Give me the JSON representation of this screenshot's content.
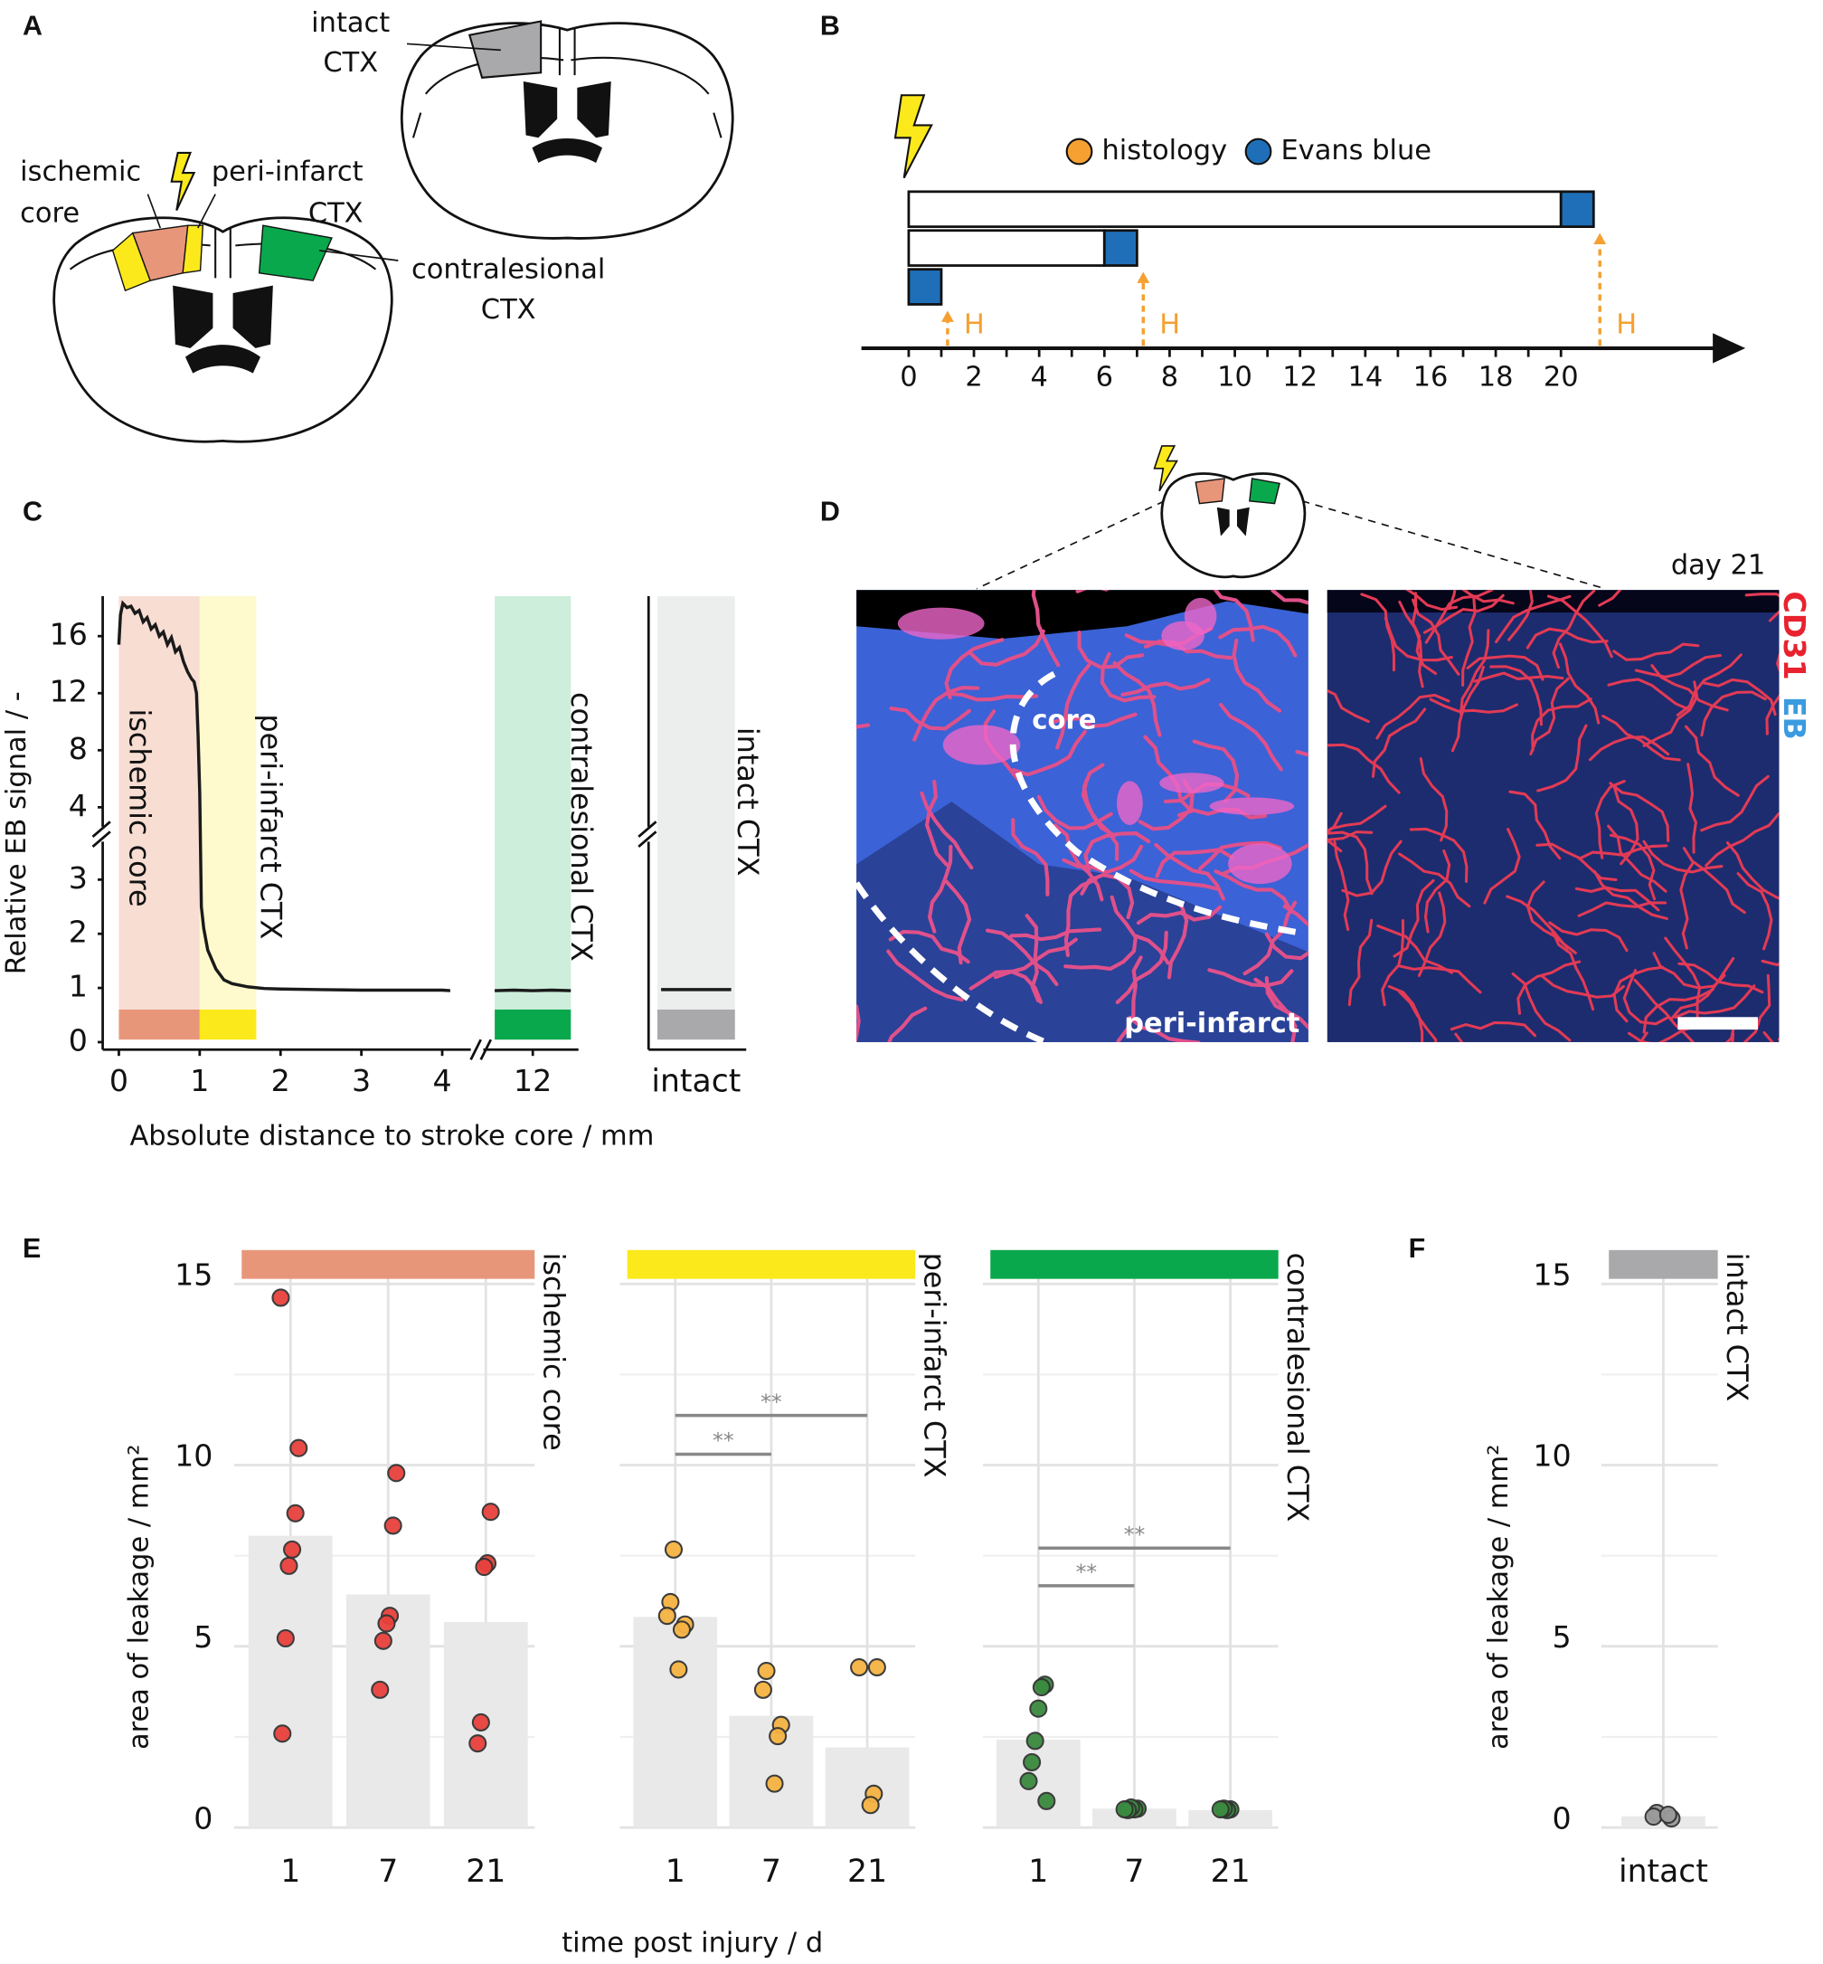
{
  "figure": {
    "panel_labels": [
      "A",
      "B",
      "C",
      "D",
      "E",
      "F"
    ]
  },
  "panel_a": {
    "intact": [
      "intact",
      "CTX"
    ],
    "ischemic": [
      "ischemic",
      "core"
    ],
    "peri": [
      "peri-infarct",
      "CTX"
    ],
    "contra": [
      "contralesional",
      "CTX"
    ]
  },
  "panel_b": {
    "type": "timeline",
    "legend": [
      {
        "name": "histology",
        "color": "#f5a031"
      },
      {
        "name": "Evans blue",
        "color": "#1f6fb8"
      }
    ],
    "groups": [
      {
        "start": 0,
        "eb_start": 20,
        "end": 21,
        "histology": 21
      },
      {
        "start": 0,
        "eb_start": 6,
        "end": 7,
        "histology": 7
      },
      {
        "start": 0,
        "eb_start": 0,
        "end": 1,
        "histology": 1
      }
    ],
    "histology_label": "H",
    "xlim": [
      -1.45,
      25.5
    ],
    "xticks": [
      0,
      2,
      4,
      6,
      8,
      10,
      12,
      14,
      16,
      18,
      20
    ]
  },
  "panel_d": {
    "day": "day 21",
    "stain_red": "CD31",
    "stain_blue": "EB",
    "core": "core",
    "peri": "peri-infarct"
  },
  "chart_data": [
    {
      "type": "line",
      "ylabel": "Relative EB signal  / -",
      "xlabel": "Absolute distance to stroke core / mm",
      "y_segments": [
        {
          "ylim": [
            0,
            3.7
          ],
          "yticks": [
            0,
            1,
            2,
            3
          ]
        },
        {
          "ylim": [
            2.2,
            18.8
          ],
          "yticks": [
            4,
            8,
            12,
            16
          ]
        }
      ],
      "x_segments": [
        {
          "xlim": [
            -0.2,
            4.4
          ],
          "xticks": [
            0,
            1,
            2,
            3,
            4
          ]
        },
        {
          "xlim": [
            11.35,
            12.6
          ],
          "xticks": [
            12
          ]
        }
      ],
      "categories": [
        "intact"
      ],
      "regions": [
        {
          "name": "ischemic core",
          "from": 0,
          "to": 1,
          "color": "#f8ddd3",
          "bar_color": "#e8967a"
        },
        {
          "name": "peri-infarct CTX",
          "from": 1,
          "to": 1.7,
          "color": "#fefacd",
          "bar_color": "#fbe91c"
        },
        {
          "name": "contralesional CTX",
          "from": 11.5,
          "to": 12.5,
          "color": "#cdeedb",
          "bar_color": "#0aa84c"
        },
        {
          "name": "intact CTX",
          "color": "#eceeed",
          "bar_color": "#a9a9ab"
        }
      ],
      "series": [
        {
          "color": "#1a1a1a",
          "x": [
            0,
            0.02,
            0.05,
            0.1,
            0.15,
            0.2,
            0.25,
            0.3,
            0.35,
            0.4,
            0.45,
            0.5,
            0.55,
            0.6,
            0.65,
            0.7,
            0.75,
            0.8,
            0.85,
            0.9,
            0.93,
            0.96,
            0.98,
            1.0,
            1.02,
            1.05,
            1.1,
            1.2,
            1.3,
            1.4,
            1.6,
            1.8,
            2,
            2.5,
            3,
            3.5,
            4,
            4.1
          ],
          "values": [
            15.4,
            17.5,
            18.3,
            18.0,
            18.1,
            17.6,
            17.8,
            17.0,
            17.3,
            16.5,
            16.8,
            16.0,
            16.3,
            15.4,
            15.9,
            14.9,
            15.2,
            14.2,
            13.5,
            13.0,
            12.8,
            12.0,
            9,
            5,
            2.5,
            2.1,
            1.7,
            1.35,
            1.15,
            1.08,
            1.02,
            0.99,
            0.98,
            0.97,
            0.96,
            0.96,
            0.96,
            0.95
          ]
        },
        {
          "color": "#1a1a1a",
          "x": [
            11.5,
            11.75,
            12,
            12.25,
            12.5
          ],
          "values": [
            0.95,
            0.96,
            0.95,
            0.96,
            0.95
          ]
        },
        {
          "color": "#1a1a1a",
          "values": [
            0.97
          ]
        }
      ]
    },
    {
      "type": "bar",
      "title": "ischemic core",
      "strip_color": "#e8967a",
      "point_color": "#e8413c",
      "ylabel": "area of leakage / mm²",
      "xlabel": "time post injury / d",
      "categories": [
        "1",
        "7",
        "21"
      ],
      "values": [
        8.05,
        6.43,
        5.67
      ],
      "points": [
        [
          14.62,
          10.47,
          8.67,
          7.67,
          7.22,
          5.22,
          2.59
        ],
        [
          9.78,
          8.33,
          5.84,
          5.63,
          5.15,
          3.8
        ],
        [
          8.71,
          7.29,
          7.19,
          2.9,
          2.32
        ]
      ],
      "ylim": [
        0,
        15.8
      ],
      "yticks": [
        0,
        5,
        10,
        15
      ],
      "minor_yticks": [
        2.5,
        7.5,
        12.5
      ],
      "significance": []
    },
    {
      "type": "bar",
      "title": "peri-infarct CTX",
      "strip_color": "#fbe91c",
      "point_color": "#f5b342",
      "categories": [
        "1",
        "7",
        "21"
      ],
      "values": [
        5.81,
        3.08,
        2.21
      ],
      "points": [
        [
          7.67,
          6.22,
          5.84,
          5.6,
          5.46,
          4.36
        ],
        [
          4.32,
          3.8,
          2.83,
          2.52,
          1.21
        ],
        [
          4.42,
          4.42,
          0.93,
          0.62
        ]
      ],
      "ylim": [
        0,
        15.8
      ],
      "yticks": [
        0,
        5,
        10,
        15
      ],
      "minor_yticks": [
        2.5,
        7.5,
        12.5
      ],
      "significance": [
        {
          "between": [
            "1",
            "7"
          ],
          "y": 10.3,
          "label": "**"
        },
        {
          "between": [
            "1",
            "21"
          ],
          "y": 11.37,
          "label": "**"
        }
      ]
    },
    {
      "type": "bar",
      "title": "contralesional CTX",
      "strip_color": "#0aa84c",
      "point_color": "#3a8a3f",
      "categories": [
        "1",
        "7",
        "21"
      ],
      "values": [
        2.42,
        0.52,
        0.48
      ],
      "points": [
        [
          3.94,
          3.87,
          3.28,
          2.39,
          1.8,
          1.28,
          0.73
        ],
        [
          0.52,
          0.5,
          0.55,
          0.48,
          0.5
        ],
        [
          0.5,
          0.48,
          0.52,
          0.5
        ]
      ],
      "ylim": [
        0,
        15.8
      ],
      "yticks": [
        0,
        5,
        10,
        15
      ],
      "minor_yticks": [
        2.5,
        7.5,
        12.5
      ],
      "significance": [
        {
          "between": [
            "1",
            "7"
          ],
          "y": 6.67,
          "label": "**"
        },
        {
          "between": [
            "1",
            "21"
          ],
          "y": 7.71,
          "label": "**"
        }
      ]
    },
    {
      "type": "bar",
      "title": "intact CTX",
      "strip_color": "#a9a9ab",
      "point_color": "#9a9a9a",
      "ylabel": "area of leakage / mm²",
      "categories": [
        "intact"
      ],
      "values": [
        0.31
      ],
      "points": [
        [
          0.4,
          0.3,
          0.25,
          0.35
        ]
      ],
      "ylim": [
        0,
        15.8
      ],
      "yticks": [
        0,
        5,
        10,
        15
      ],
      "minor_yticks": [
        2.5,
        7.5,
        12.5
      ],
      "significance": []
    }
  ]
}
